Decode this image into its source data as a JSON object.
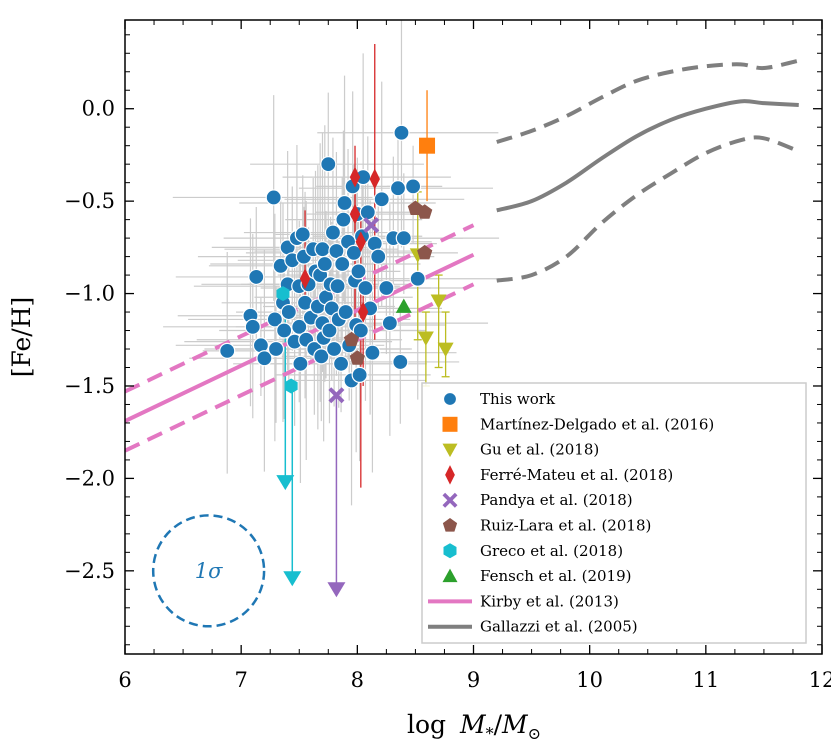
{
  "chart_data": {
    "type": "scatter",
    "xlabel": "log M*/M⊙",
    "xlabel_parts": {
      "pre": "log",
      "main": "M",
      "sub_star": "*",
      "slash": "/",
      "main2": "M",
      "sub_sun": "⊙"
    },
    "ylabel": "[Fe/H]",
    "xlim": [
      6,
      12
    ],
    "ylim": [
      -2.95,
      0.48
    ],
    "xticks": [
      6,
      7,
      8,
      9,
      10,
      11,
      12
    ],
    "xtick_labels": [
      "6",
      "7",
      "8",
      "9",
      "10",
      "11",
      "12"
    ],
    "yticks": [
      0.0,
      -0.5,
      -1.0,
      -1.5,
      -2.0,
      -2.5
    ],
    "ytick_labels": [
      "0.0",
      "−0.5",
      "−1.0",
      "−1.5",
      "−2.0",
      "−2.5"
    ],
    "legend_position": "lower-right",
    "colors": {
      "this_work": "#1f77b4",
      "martinez": "#ff7f0e",
      "gu": "#bcbd22",
      "ferre": "#d62728",
      "pandya": "#9467bd",
      "ruiz": "#8c564b",
      "greco": "#17becf",
      "fensch": "#2ca02c",
      "kirby": "#e377c2",
      "gallazzi": "#7f7f7f",
      "errorbar_gray": "#cccccc"
    },
    "sigma_circle": {
      "center": [
        6.72,
        -2.5
      ],
      "label": "1σ",
      "radius_dex": 0.3
    },
    "series": [
      {
        "name": "This work",
        "marker": "circle",
        "color": "#1f77b4",
        "points": [
          [
            6.88,
            -1.31
          ],
          [
            7.08,
            -1.12
          ],
          [
            7.1,
            -1.18
          ],
          [
            7.13,
            -0.91
          ],
          [
            7.17,
            -1.28
          ],
          [
            7.2,
            -1.35
          ],
          [
            7.28,
            -0.48
          ],
          [
            7.29,
            -1.14
          ],
          [
            7.3,
            -1.3
          ],
          [
            7.34,
            -0.85
          ],
          [
            7.36,
            -1.05
          ],
          [
            7.37,
            -1.2
          ],
          [
            7.4,
            -0.95
          ],
          [
            7.4,
            -0.75
          ],
          [
            7.41,
            -1.1
          ],
          [
            7.44,
            -0.82
          ],
          [
            7.46,
            -1.26
          ],
          [
            7.48,
            -0.7
          ],
          [
            7.5,
            -0.96
          ],
          [
            7.5,
            -1.18
          ],
          [
            7.51,
            -1.38
          ],
          [
            7.53,
            -0.68
          ],
          [
            7.54,
            -0.8
          ],
          [
            7.55,
            -1.05
          ],
          [
            7.56,
            -1.25
          ],
          [
            7.58,
            -0.95
          ],
          [
            7.6,
            -1.13
          ],
          [
            7.62,
            -0.76
          ],
          [
            7.63,
            -1.3
          ],
          [
            7.64,
            -0.88
          ],
          [
            7.66,
            -1.07
          ],
          [
            7.68,
            -0.9
          ],
          [
            7.69,
            -1.34
          ],
          [
            7.7,
            -0.76
          ],
          [
            7.7,
            -1.16
          ],
          [
            7.71,
            -1.24
          ],
          [
            7.72,
            -0.84
          ],
          [
            7.73,
            -1.02
          ],
          [
            7.75,
            -0.3
          ],
          [
            7.76,
            -1.2
          ],
          [
            7.77,
            -0.95
          ],
          [
            7.78,
            -1.08
          ],
          [
            7.79,
            -0.67
          ],
          [
            7.8,
            -1.3
          ],
          [
            7.82,
            -0.77
          ],
          [
            7.83,
            -0.96
          ],
          [
            7.84,
            -1.14
          ],
          [
            7.86,
            -1.38
          ],
          [
            7.87,
            -0.84
          ],
          [
            7.88,
            -0.6
          ],
          [
            7.89,
            -0.51
          ],
          [
            7.9,
            -1.1
          ],
          [
            7.92,
            -0.72
          ],
          [
            7.93,
            -1.28
          ],
          [
            7.95,
            -1.47
          ],
          [
            7.96,
            -0.42
          ],
          [
            7.97,
            -0.78
          ],
          [
            7.98,
            -0.93
          ],
          [
            7.99,
            -1.17
          ],
          [
            8.0,
            -0.57
          ],
          [
            8.01,
            -0.88
          ],
          [
            8.02,
            -1.44
          ],
          [
            8.03,
            -1.2
          ],
          [
            8.04,
            -0.69
          ],
          [
            8.05,
            -0.37
          ],
          [
            8.07,
            -0.97
          ],
          [
            8.09,
            -0.56
          ],
          [
            8.11,
            -1.08
          ],
          [
            8.13,
            -1.32
          ],
          [
            8.15,
            -0.73
          ],
          [
            8.18,
            -0.8
          ],
          [
            8.21,
            -0.49
          ],
          [
            8.25,
            -0.97
          ],
          [
            8.28,
            -1.16
          ],
          [
            8.31,
            -0.7
          ],
          [
            8.35,
            -0.43
          ],
          [
            8.37,
            -1.37
          ],
          [
            8.38,
            -0.13
          ],
          [
            8.4,
            -0.7
          ],
          [
            8.48,
            -0.42
          ],
          [
            8.52,
            -0.92
          ]
        ]
      },
      {
        "name": "Martínez-Delgado et al. (2016)",
        "marker": "square",
        "color": "#ff7f0e",
        "points": [
          [
            8.6,
            -0.2
          ]
        ]
      },
      {
        "name": "Gu et al. (2018)",
        "marker": "triangle-down",
        "color": "#bcbd22",
        "points": [
          [
            8.52,
            -0.79
          ],
          [
            8.7,
            -1.04
          ],
          [
            8.59,
            -1.24
          ],
          [
            8.76,
            -1.3
          ]
        ]
      },
      {
        "name": "Ferré-Mateu et al. (2018)",
        "marker": "thin-diamond",
        "color": "#d62728",
        "points": [
          [
            7.55,
            -0.92
          ],
          [
            7.98,
            -0.37
          ],
          [
            7.98,
            -0.57
          ],
          [
            8.03,
            -0.72
          ],
          [
            8.05,
            -1.1
          ],
          [
            8.15,
            -0.38
          ]
        ]
      },
      {
        "name": "Pandya et al. (2018)",
        "marker": "x-filled",
        "color": "#9467bd",
        "points": [
          [
            7.82,
            -1.55
          ],
          [
            8.12,
            -0.63
          ]
        ]
      },
      {
        "name": "Ruiz-Lara et al. (2018)",
        "marker": "pentagon",
        "color": "#8c564b",
        "points": [
          [
            8.5,
            -0.54
          ],
          [
            8.58,
            -0.56
          ],
          [
            8.58,
            -0.78
          ],
          [
            7.95,
            -1.25
          ],
          [
            8.0,
            -1.35
          ]
        ]
      },
      {
        "name": "Greco et al. (2018)",
        "marker": "hexagon",
        "color": "#17becf",
        "points": [
          [
            7.36,
            -1.0
          ],
          [
            7.43,
            -1.5
          ]
        ]
      },
      {
        "name": "Fensch et al. (2019)",
        "marker": "triangle-up",
        "color": "#2ca02c",
        "points": [
          [
            8.4,
            -1.07
          ]
        ]
      },
      {
        "name": "Kirby et al. (2013)",
        "marker": "line",
        "color": "#e377c2",
        "relation": {
          "slope": 0.3,
          "intercept_at_6": -1.69,
          "x_range": [
            6,
            9
          ],
          "scatter_dex": 0.16
        }
      },
      {
        "name": "Gallazzi et al. (2005)",
        "marker": "line",
        "color": "#7f7f7f",
        "median": {
          "x": [
            9.2,
            9.5,
            9.8,
            10.1,
            10.4,
            10.7,
            11.0,
            11.3,
            11.5,
            11.8
          ],
          "y": [
            -0.55,
            -0.5,
            -0.4,
            -0.27,
            -0.15,
            -0.06,
            0.0,
            0.04,
            0.03,
            0.02
          ]
        },
        "upper": {
          "x": [
            9.2,
            9.5,
            9.8,
            10.1,
            10.4,
            10.7,
            11.0,
            11.3,
            11.5,
            11.8
          ],
          "y": [
            -0.18,
            -0.12,
            -0.04,
            0.06,
            0.15,
            0.2,
            0.23,
            0.24,
            0.22,
            0.26
          ]
        },
        "lower": {
          "x": [
            9.2,
            9.5,
            9.8,
            10.1,
            10.4,
            10.7,
            11.0,
            11.3,
            11.5,
            11.8
          ],
          "y": [
            -0.93,
            -0.9,
            -0.8,
            -0.62,
            -0.47,
            -0.35,
            -0.24,
            -0.17,
            -0.16,
            -0.23
          ]
        }
      }
    ],
    "ferre_errorbars": [
      [
        7.55,
        -0.92,
        -1.05,
        -0.55
      ],
      [
        7.98,
        -0.37,
        -1.3,
        -0.2
      ],
      [
        7.98,
        -0.57,
        -1.1,
        -0.35
      ],
      [
        8.03,
        -0.72,
        -2.05,
        -0.55
      ],
      [
        8.05,
        -1.1,
        -1.5,
        -0.9
      ],
      [
        8.15,
        -0.38,
        -1.25,
        0.35
      ]
    ],
    "martinez_errorbar": [
      8.6,
      -0.2,
      -0.5,
      0.1
    ],
    "gu_errorbars": [
      [
        8.52,
        -0.79,
        -1.25,
        -0.45
      ],
      [
        8.7,
        -1.04,
        -1.4,
        -0.9
      ],
      [
        8.59,
        -1.24,
        -1.5,
        -1.1
      ],
      [
        8.76,
        -1.3,
        -1.45,
        -1.1
      ]
    ],
    "upper_limits": [
      {
        "series": "Greco et al. (2018)",
        "x": 7.38,
        "y_from": -1.0,
        "y_to": -2.02,
        "color": "#17becf"
      },
      {
        "series": "Greco et al. (2018)",
        "x": 7.44,
        "y_from": -1.5,
        "y_to": -2.54,
        "color": "#17becf"
      },
      {
        "series": "Pandya et al. (2018)",
        "x": 7.82,
        "y_from": -1.55,
        "y_to": -2.6,
        "color": "#9467bd"
      }
    ]
  }
}
